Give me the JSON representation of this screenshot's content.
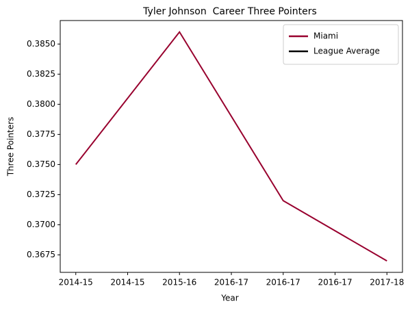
{
  "chart_data": {
    "type": "line",
    "title": "Tyler Johnson  Career Three Pointers",
    "xlabel": "Year",
    "ylabel": "Three Pointers",
    "categories": [
      "2014-15",
      "2015-16",
      "2016-17",
      "2017-18"
    ],
    "series": [
      {
        "name": "Miami",
        "color": "#98002e",
        "values": [
          0.375,
          0.386,
          0.372,
          0.367
        ]
      },
      {
        "name": "League Average",
        "color": "#000000",
        "values": [
          null,
          null,
          null,
          null
        ]
      }
    ],
    "xlim": [
      -0.15,
      3.15
    ],
    "xticks": [
      {
        "value": 0,
        "label": "2014-15"
      },
      {
        "value": 0.5,
        "label": "2014-15"
      },
      {
        "value": 1,
        "label": "2015-16"
      },
      {
        "value": 1.5,
        "label": "2016-17"
      },
      {
        "value": 2,
        "label": "2016-17"
      },
      {
        "value": 2.5,
        "label": "2016-17"
      },
      {
        "value": 3,
        "label": "2017-18"
      }
    ],
    "ylim": [
      0.36605,
      0.38695
    ],
    "yticks": [
      0.3675,
      {
        "value": 0.37,
        "label": "0.3700"
      },
      0.3725,
      {
        "value": 0.375,
        "label": "0.3750"
      },
      0.3775,
      {
        "value": 0.38,
        "label": "0.3800"
      },
      0.3825,
      {
        "value": 0.385,
        "label": "0.3850"
      }
    ],
    "legend": "upper right",
    "grid": false
  }
}
